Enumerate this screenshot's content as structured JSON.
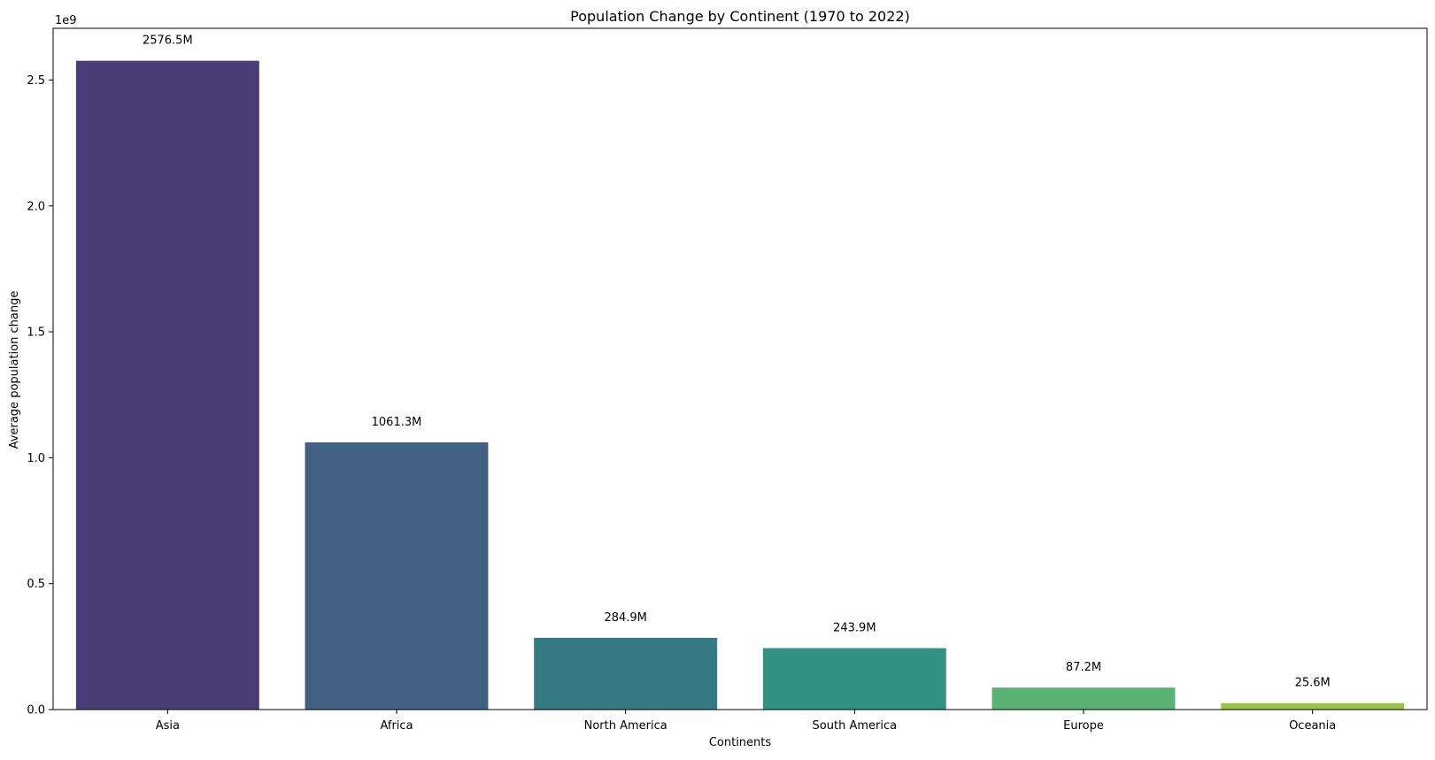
{
  "chart_data": {
    "type": "bar",
    "title": "Population Change by Continent (1970 to 2022)",
    "xlabel": "Continents",
    "ylabel": "Average population change",
    "y_offset_label": "1e9",
    "y_scale_divisor": 1000000000,
    "ylim": [
      0,
      2705325000
    ],
    "yticks": [
      {
        "value": 0,
        "label": "0.0"
      },
      {
        "value": 500000000,
        "label": "0.5"
      },
      {
        "value": 1000000000,
        "label": "1.0"
      },
      {
        "value": 1500000000,
        "label": "1.5"
      },
      {
        "value": 2000000000,
        "label": "2.0"
      },
      {
        "value": 2500000000,
        "label": "2.5"
      }
    ],
    "grid": false,
    "legend": "none",
    "categories": [
      "Asia",
      "Africa",
      "North America",
      "South America",
      "Europe",
      "Oceania"
    ],
    "values": [
      2576500000,
      1061300000,
      284900000,
      243900000,
      87200000,
      25600000
    ],
    "data_labels": [
      "2576.5M",
      "1061.3M",
      "284.9M",
      "243.9M",
      "87.2M",
      "25.6M"
    ],
    "colors": [
      "#4a3c74",
      "#426183",
      "#357983",
      "#309281",
      "#5ab272",
      "#98c448"
    ]
  }
}
